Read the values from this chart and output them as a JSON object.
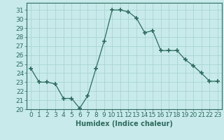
{
  "x": [
    0,
    1,
    2,
    3,
    4,
    5,
    6,
    7,
    8,
    9,
    10,
    11,
    12,
    13,
    14,
    15,
    16,
    17,
    18,
    19,
    20,
    21,
    22,
    23
  ],
  "y": [
    24.5,
    23.0,
    23.0,
    22.8,
    21.2,
    21.2,
    20.1,
    21.5,
    24.5,
    27.5,
    31.0,
    31.0,
    30.8,
    30.1,
    28.5,
    28.7,
    26.5,
    26.5,
    26.5,
    25.5,
    24.8,
    24.0,
    23.1,
    23.1
  ],
  "line_color": "#2d6b5e",
  "marker": "+",
  "marker_size": 4,
  "marker_lw": 1.2,
  "bg_color": "#c8eaea",
  "grid_color": "#aad4d4",
  "xlabel": "Humidex (Indice chaleur)",
  "xlim": [
    -0.5,
    23.5
  ],
  "ylim": [
    20,
    31.8
  ],
  "yticks": [
    20,
    21,
    22,
    23,
    24,
    25,
    26,
    27,
    28,
    29,
    30,
    31
  ],
  "xticks": [
    0,
    1,
    2,
    3,
    4,
    5,
    6,
    7,
    8,
    9,
    10,
    11,
    12,
    13,
    14,
    15,
    16,
    17,
    18,
    19,
    20,
    21,
    22,
    23
  ],
  "tick_color": "#2d6b5e",
  "label_color": "#2d6b5e",
  "font_size": 6.5
}
